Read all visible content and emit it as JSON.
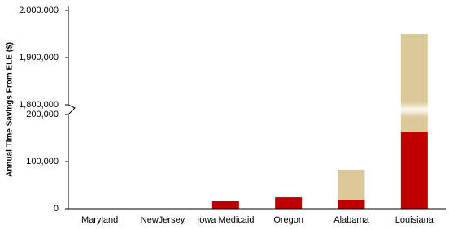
{
  "chart_data": {
    "type": "bar",
    "stacked": true,
    "y_label": "Annual Time Savings From ELE ($)",
    "categories": [
      "Maryland",
      "NewJersey",
      "Iowa Medicaid",
      "Oregon",
      "Alabama",
      "Louisiana"
    ],
    "series": [
      {
        "color": "#c00000",
        "values": [
          0,
          0,
          15500,
          24000,
          19000,
          164000
        ]
      },
      {
        "color": "#dcc896",
        "values": [
          0,
          0,
          0,
          0,
          64000,
          1786000
        ]
      }
    ],
    "ylim": [
      0,
      2000000
    ],
    "axis_break": [
      200000,
      1800000
    ],
    "yticks": [
      0,
      {
        "value": 100000,
        "label": "100,000"
      },
      {
        "value": 200000,
        "label": "200,000"
      },
      {
        "value": 1800000,
        "label": "1,800,000"
      },
      {
        "value": 1900000,
        "label": "1,900,000"
      },
      {
        "value": 2000000,
        "label": "2.000.000"
      }
    ]
  }
}
